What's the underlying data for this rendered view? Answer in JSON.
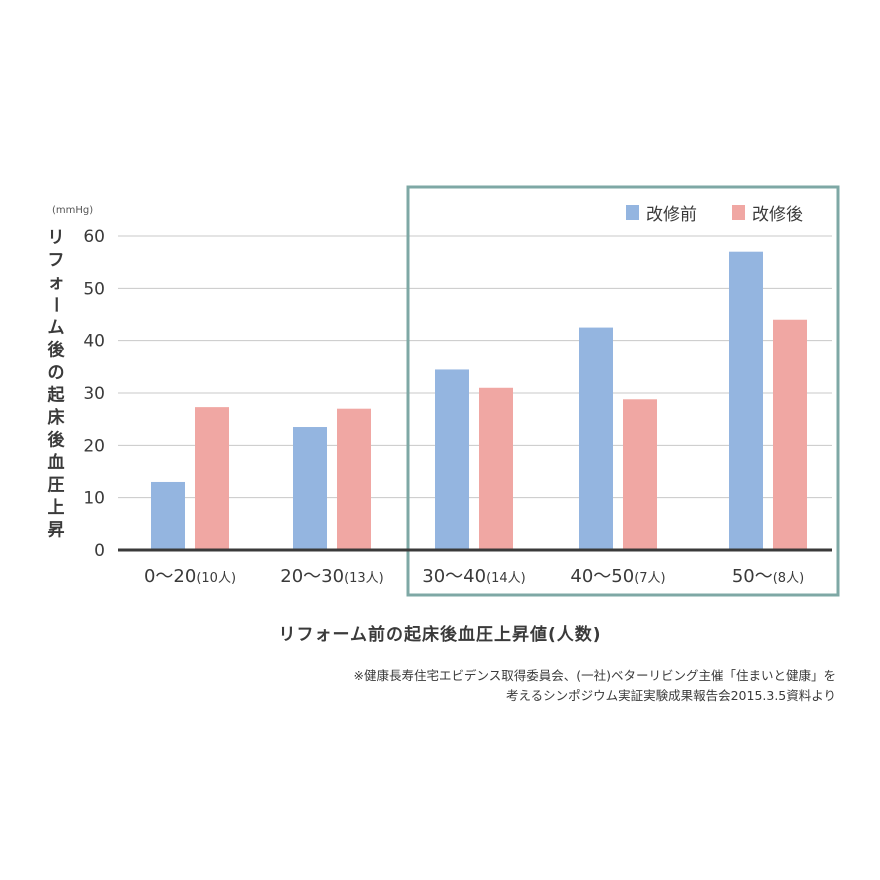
{
  "chart_data": {
    "type": "bar",
    "unit": "(mmHg)",
    "ylabel": "リフォーム後の起床後血圧上昇",
    "xlabel": "リフォーム前の起床後血圧上昇値(人数)",
    "categories": [
      {
        "main": "0〜20",
        "count": "(10人)"
      },
      {
        "main": "20〜30",
        "count": "(13人)"
      },
      {
        "main": "30〜40",
        "count": "(14人)"
      },
      {
        "main": "40〜50",
        "count": "(7人)"
      },
      {
        "main": "50〜",
        "count": "(8人)"
      }
    ],
    "series": [
      {
        "name": "改修前",
        "color": "#94b5e0",
        "values": [
          13,
          23.5,
          34.5,
          42.5,
          57
        ]
      },
      {
        "name": "改修後",
        "color": "#f0a7a3",
        "values": [
          27.3,
          27,
          31,
          28.8,
          44
        ]
      }
    ],
    "ylim": [
      0,
      60
    ],
    "yticks": [
      0,
      10,
      20,
      30,
      40,
      50,
      60
    ],
    "grid": true,
    "legend": "top-right",
    "highlight": {
      "from_category": 2,
      "to_category": 4,
      "color": "#7ea8a5"
    }
  },
  "source": {
    "line1": "※健康長寿住宅エビデンス取得委員会、(一社)ベターリビング主催「住まいと健康」を",
    "line2": "考えるシンポジウム実証実験成果報告会2015.3.5資料より"
  }
}
